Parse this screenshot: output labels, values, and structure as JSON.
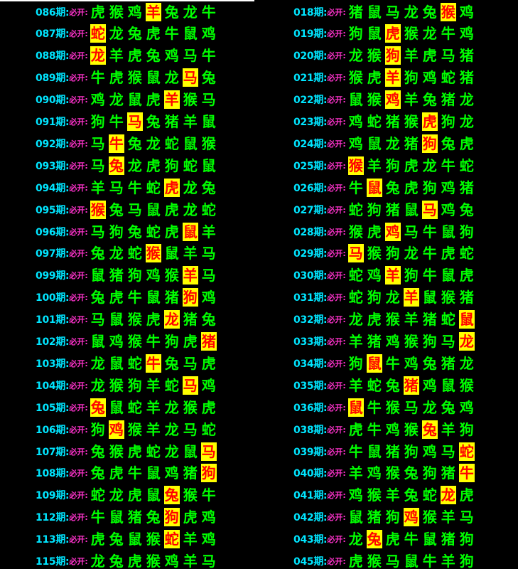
{
  "tag_text": "必开:",
  "highlight_colors": {
    "bg": "#ffff00",
    "fg": "#ff0000",
    "normal": "#00ff00",
    "period": "#00e5ff",
    "tag": "#ff33cc"
  },
  "left": [
    {
      "period": "086期:",
      "animals": [
        "虎",
        "猴",
        "鸡",
        "羊",
        "兔",
        "龙",
        "牛"
      ],
      "hl": 3
    },
    {
      "period": "087期:",
      "animals": [
        "蛇",
        "龙",
        "兔",
        "虎",
        "牛",
        "鼠",
        "鸡"
      ],
      "hl": 0
    },
    {
      "period": "088期:",
      "animals": [
        "龙",
        "羊",
        "虎",
        "兔",
        "鸡",
        "马",
        "牛"
      ],
      "hl": 0
    },
    {
      "period": "089期:",
      "animals": [
        "牛",
        "虎",
        "猴",
        "鼠",
        "龙",
        "马",
        "兔"
      ],
      "hl": 5
    },
    {
      "period": "090期:",
      "animals": [
        "鸡",
        "龙",
        "鼠",
        "虎",
        "羊",
        "猴",
        "马"
      ],
      "hl": 4
    },
    {
      "period": "091期:",
      "animals": [
        "狗",
        "牛",
        "马",
        "兔",
        "猪",
        "羊",
        "鼠"
      ],
      "hl": 2
    },
    {
      "period": "092期:",
      "animals": [
        "马",
        "牛",
        "兔",
        "龙",
        "蛇",
        "鼠",
        "猴"
      ],
      "hl": 1
    },
    {
      "period": "093期:",
      "animals": [
        "马",
        "兔",
        "龙",
        "虎",
        "狗",
        "蛇",
        "鼠"
      ],
      "hl": 1
    },
    {
      "period": "094期:",
      "animals": [
        "羊",
        "马",
        "牛",
        "蛇",
        "虎",
        "龙",
        "兔"
      ],
      "hl": 4
    },
    {
      "period": "095期:",
      "animals": [
        "猴",
        "兔",
        "马",
        "鼠",
        "虎",
        "龙",
        "蛇"
      ],
      "hl": 0
    },
    {
      "period": "096期:",
      "animals": [
        "马",
        "狗",
        "兔",
        "蛇",
        "虎",
        "鼠",
        "羊"
      ],
      "hl": 5
    },
    {
      "period": "097期:",
      "animals": [
        "兔",
        "龙",
        "蛇",
        "猴",
        "鼠",
        "羊",
        "马"
      ],
      "hl": 3
    },
    {
      "period": "099期:",
      "animals": [
        "鼠",
        "猪",
        "狗",
        "鸡",
        "猴",
        "羊",
        "马"
      ],
      "hl": 5
    },
    {
      "period": "100期:",
      "animals": [
        "兔",
        "虎",
        "牛",
        "鼠",
        "猪",
        "狗",
        "鸡"
      ],
      "hl": 5
    },
    {
      "period": "101期:",
      "animals": [
        "马",
        "鼠",
        "猴",
        "虎",
        "龙",
        "猪",
        "兔"
      ],
      "hl": 4
    },
    {
      "period": "102期:",
      "animals": [
        "鼠",
        "鸡",
        "猴",
        "牛",
        "狗",
        "虎",
        "猪"
      ],
      "hl": 6
    },
    {
      "period": "103期:",
      "animals": [
        "龙",
        "鼠",
        "蛇",
        "牛",
        "兔",
        "马",
        "虎"
      ],
      "hl": 3
    },
    {
      "period": "104期:",
      "animals": [
        "龙",
        "猴",
        "狗",
        "羊",
        "蛇",
        "马",
        "鸡"
      ],
      "hl": 5
    },
    {
      "period": "105期:",
      "animals": [
        "兔",
        "鼠",
        "蛇",
        "羊",
        "龙",
        "猴",
        "虎"
      ],
      "hl": 0
    },
    {
      "period": "106期:",
      "animals": [
        "狗",
        "鸡",
        "猴",
        "羊",
        "龙",
        "马",
        "蛇"
      ],
      "hl": 1
    },
    {
      "period": "107期:",
      "animals": [
        "兔",
        "猴",
        "虎",
        "蛇",
        "龙",
        "鼠",
        "马"
      ],
      "hl": 6
    },
    {
      "period": "108期:",
      "animals": [
        "兔",
        "虎",
        "牛",
        "鼠",
        "鸡",
        "猪",
        "狗"
      ],
      "hl": 6
    },
    {
      "period": "109期:",
      "animals": [
        "蛇",
        "龙",
        "虎",
        "鼠",
        "兔",
        "猴",
        "牛"
      ],
      "hl": 4
    },
    {
      "period": "112期:",
      "animals": [
        "牛",
        "鼠",
        "猪",
        "兔",
        "狗",
        "虎",
        "鸡"
      ],
      "hl": 4
    },
    {
      "period": "113期:",
      "animals": [
        "虎",
        "兔",
        "鼠",
        "猴",
        "蛇",
        "羊",
        "鸡"
      ],
      "hl": 4
    },
    {
      "period": "115期:",
      "animals": [
        "龙",
        "兔",
        "虎",
        "猴",
        "鸡",
        "羊",
        "马"
      ],
      "hl": -1
    }
  ],
  "right": [
    {
      "period": "018期:",
      "animals": [
        "猪",
        "鼠",
        "马",
        "龙",
        "兔",
        "猴",
        "鸡"
      ],
      "hl": 5
    },
    {
      "period": "019期:",
      "animals": [
        "狗",
        "鼠",
        "虎",
        "猴",
        "龙",
        "牛",
        "鸡"
      ],
      "hl": 2
    },
    {
      "period": "020期:",
      "animals": [
        "龙",
        "猴",
        "狗",
        "羊",
        "虎",
        "马",
        "猪"
      ],
      "hl": 2
    },
    {
      "period": "021期:",
      "animals": [
        "猴",
        "虎",
        "羊",
        "狗",
        "鸡",
        "蛇",
        "猪"
      ],
      "hl": 2
    },
    {
      "period": "022期:",
      "animals": [
        "鼠",
        "猴",
        "鸡",
        "羊",
        "兔",
        "猪",
        "龙"
      ],
      "hl": 2
    },
    {
      "period": "023期:",
      "animals": [
        "鸡",
        "蛇",
        "猪",
        "猴",
        "虎",
        "狗",
        "龙"
      ],
      "hl": 4
    },
    {
      "period": "024期:",
      "animals": [
        "鸡",
        "鼠",
        "龙",
        "猪",
        "狗",
        "兔",
        "虎"
      ],
      "hl": 4
    },
    {
      "period": "025期:",
      "animals": [
        "猴",
        "羊",
        "狗",
        "虎",
        "龙",
        "牛",
        "蛇"
      ],
      "hl": 0
    },
    {
      "period": "026期:",
      "animals": [
        "牛",
        "鼠",
        "兔",
        "虎",
        "狗",
        "鸡",
        "猪"
      ],
      "hl": 1
    },
    {
      "period": "027期:",
      "animals": [
        "蛇",
        "狗",
        "猪",
        "鼠",
        "马",
        "鸡",
        "兔"
      ],
      "hl": 4
    },
    {
      "period": "028期:",
      "animals": [
        "猴",
        "虎",
        "鸡",
        "马",
        "牛",
        "鼠",
        "狗"
      ],
      "hl": 2
    },
    {
      "period": "029期:",
      "animals": [
        "马",
        "猴",
        "狗",
        "龙",
        "牛",
        "虎",
        "蛇"
      ],
      "hl": 0
    },
    {
      "period": "030期:",
      "animals": [
        "蛇",
        "鸡",
        "羊",
        "狗",
        "牛",
        "鼠",
        "虎"
      ],
      "hl": 2
    },
    {
      "period": "031期:",
      "animals": [
        "蛇",
        "狗",
        "龙",
        "羊",
        "鼠",
        "猴",
        "猪"
      ],
      "hl": 3
    },
    {
      "period": "032期:",
      "animals": [
        "龙",
        "虎",
        "猴",
        "羊",
        "猪",
        "蛇",
        "鼠"
      ],
      "hl": 6
    },
    {
      "period": "033期:",
      "animals": [
        "羊",
        "猪",
        "鸡",
        "猴",
        "狗",
        "马",
        "龙"
      ],
      "hl": 6
    },
    {
      "period": "034期:",
      "animals": [
        "狗",
        "鼠",
        "牛",
        "鸡",
        "兔",
        "猪",
        "龙"
      ],
      "hl": 1
    },
    {
      "period": "035期:",
      "animals": [
        "羊",
        "蛇",
        "兔",
        "猪",
        "鸡",
        "鼠",
        "猴"
      ],
      "hl": 3
    },
    {
      "period": "036期:",
      "animals": [
        "鼠",
        "牛",
        "猴",
        "马",
        "龙",
        "兔",
        "鸡"
      ],
      "hl": 0
    },
    {
      "period": "038期:",
      "animals": [
        "虎",
        "牛",
        "鸡",
        "猴",
        "兔",
        "羊",
        "狗"
      ],
      "hl": 4
    },
    {
      "period": "039期:",
      "animals": [
        "牛",
        "鼠",
        "猪",
        "狗",
        "鸡",
        "马",
        "蛇"
      ],
      "hl": 6
    },
    {
      "period": "040期:",
      "animals": [
        "羊",
        "鸡",
        "猴",
        "兔",
        "狗",
        "猪",
        "牛"
      ],
      "hl": 6
    },
    {
      "period": "041期:",
      "animals": [
        "鸡",
        "猴",
        "羊",
        "兔",
        "蛇",
        "龙",
        "虎"
      ],
      "hl": 5
    },
    {
      "period": "042期:",
      "animals": [
        "鼠",
        "猪",
        "狗",
        "鸡",
        "猴",
        "羊",
        "马"
      ],
      "hl": 3
    },
    {
      "period": "043期:",
      "animals": [
        "龙",
        "兔",
        "虎",
        "牛",
        "鼠",
        "猪",
        "狗"
      ],
      "hl": 1
    },
    {
      "period": "045期:",
      "animals": [
        "虎",
        "猴",
        "马",
        "鼠",
        "牛",
        "羊",
        "狗"
      ],
      "hl": -1
    }
  ]
}
